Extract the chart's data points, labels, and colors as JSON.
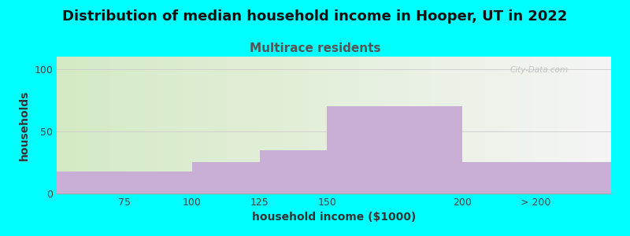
{
  "title": "Distribution of median household income in Hooper, UT in 2022",
  "subtitle": "Multirace residents",
  "xlabel": "household income ($1000)",
  "ylabel": "households",
  "bar_left_edges": [
    50,
    100,
    125,
    150,
    200
  ],
  "bar_widths": [
    50,
    25,
    25,
    50,
    55
  ],
  "bar_heights": [
    18,
    25,
    35,
    70,
    25
  ],
  "bar_color": "#c9aed6",
  "xtick_positions": [
    75,
    100,
    125,
    150,
    200,
    227
  ],
  "xtick_labels": [
    "75",
    "100",
    "125",
    "150",
    "200",
    "> 200"
  ],
  "ytick_positions": [
    0,
    50,
    100
  ],
  "ytick_labels": [
    "0",
    "50",
    "100"
  ],
  "ylim": [
    0,
    110
  ],
  "xlim": [
    50,
    255
  ],
  "background_color": "#00FFFF",
  "gradient_color_left": "#d4eac4",
  "gradient_color_right": "#f5f5f5",
  "title_fontsize": 13,
  "subtitle_fontsize": 11,
  "subtitle_color": "#555555",
  "axis_label_fontsize": 10,
  "tick_fontsize": 9,
  "watermark": "City-Data.com"
}
